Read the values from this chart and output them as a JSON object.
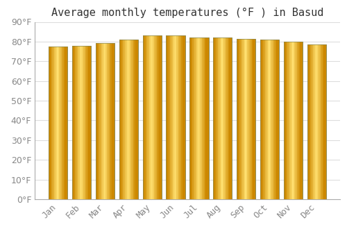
{
  "title": "Average monthly temperatures (°F ) in Basud",
  "months": [
    "Jan",
    "Feb",
    "Mar",
    "Apr",
    "May",
    "Jun",
    "Jul",
    "Aug",
    "Sep",
    "Oct",
    "Nov",
    "Dec"
  ],
  "values": [
    77.5,
    77.9,
    79.3,
    81.0,
    83.0,
    83.0,
    82.2,
    82.2,
    81.5,
    81.0,
    79.9,
    78.6
  ],
  "bar_color_main": "#F5A800",
  "bar_color_light": "#FFD966",
  "bar_color_dark": "#CC8800",
  "bar_edge_color": "#888855",
  "background_color": "#FFFFFF",
  "grid_color": "#DDDDDD",
  "ylim": [
    0,
    90
  ],
  "yticks": [
    0,
    10,
    20,
    30,
    40,
    50,
    60,
    70,
    80,
    90
  ],
  "title_fontsize": 11,
  "tick_fontsize": 9,
  "title_color": "#333333",
  "tick_color": "#888888",
  "bar_width": 0.8
}
